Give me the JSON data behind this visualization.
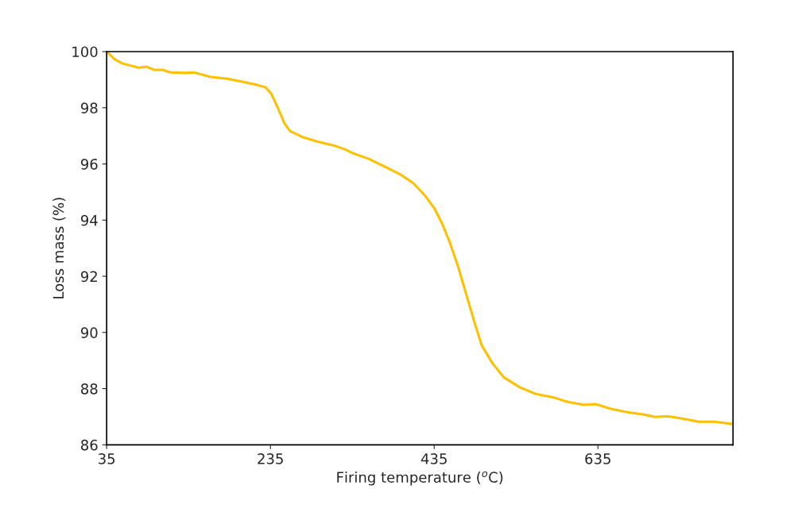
{
  "chart_data": {
    "type": "line",
    "xlabel": "Firing temperature ($^{o}$C)",
    "ylabel": "Loss mass (%)",
    "xlim": [
      35,
      800
    ],
    "xticks": [
      35,
      235,
      435,
      635
    ],
    "ylim": [
      86,
      100
    ],
    "yticks": [
      86,
      88,
      90,
      92,
      94,
      96,
      98,
      100
    ],
    "grid": false,
    "legend": false,
    "marker": "none",
    "line_style": "solid",
    "series": [
      {
        "color": "#ffc000",
        "x": [
          35,
          45,
          54,
          74,
          84,
          93,
          103,
          113,
          132,
          142,
          161,
          181,
          200,
          219,
          229,
          236,
          244,
          252,
          259,
          273,
          292,
          312,
          326,
          336,
          355,
          375,
          394,
          409,
          423,
          435,
          445,
          454,
          464,
          474,
          484,
          493,
          506,
          520,
          540,
          559,
          579,
          598,
          618,
          632,
          652,
          671,
          690,
          705,
          720,
          739,
          758,
          778,
          799
        ],
        "values": [
          100,
          99.72,
          99.58,
          99.43,
          99.46,
          99.35,
          99.35,
          99.26,
          99.24,
          99.26,
          99.1,
          99.04,
          98.93,
          98.81,
          98.73,
          98.5,
          98.0,
          97.45,
          97.17,
          96.97,
          96.8,
          96.66,
          96.52,
          96.38,
          96.18,
          95.9,
          95.62,
          95.33,
          94.9,
          94.43,
          93.86,
          93.21,
          92.36,
          91.37,
          90.38,
          89.54,
          88.91,
          88.4,
          88.04,
          87.81,
          87.7,
          87.53,
          87.42,
          87.45,
          87.27,
          87.16,
          87.08,
          86.99,
          87.02,
          86.93,
          86.82,
          86.82,
          86.74
        ]
      }
    ]
  }
}
